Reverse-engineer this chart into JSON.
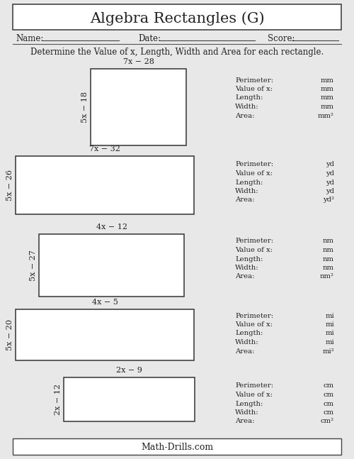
{
  "title": "Algebra Rectangles (G)",
  "instruction": "Determine the Value of x, Length, Width and Area for each rectangle.",
  "footer": "Math-Drills.com",
  "rectangles": [
    {
      "top_label": "7x − 28",
      "side_label": "5x − 18",
      "unit": "mm",
      "area_unit": "mm²"
    },
    {
      "top_label": "7x − 32",
      "side_label": "5x − 26",
      "unit": "yd",
      "area_unit": "yd²"
    },
    {
      "top_label": "4x − 12",
      "side_label": "5x − 27",
      "unit": "nm",
      "area_unit": "nm²"
    },
    {
      "top_label": "4x − 5",
      "side_label": "5x − 20",
      "unit": "mi",
      "area_unit": "mi²"
    },
    {
      "top_label": "2x − 9",
      "side_label": "2x − 12",
      "unit": "cm",
      "area_unit": "cm²"
    }
  ],
  "bg_color": "#e8e8e8",
  "text_color": "#222222"
}
